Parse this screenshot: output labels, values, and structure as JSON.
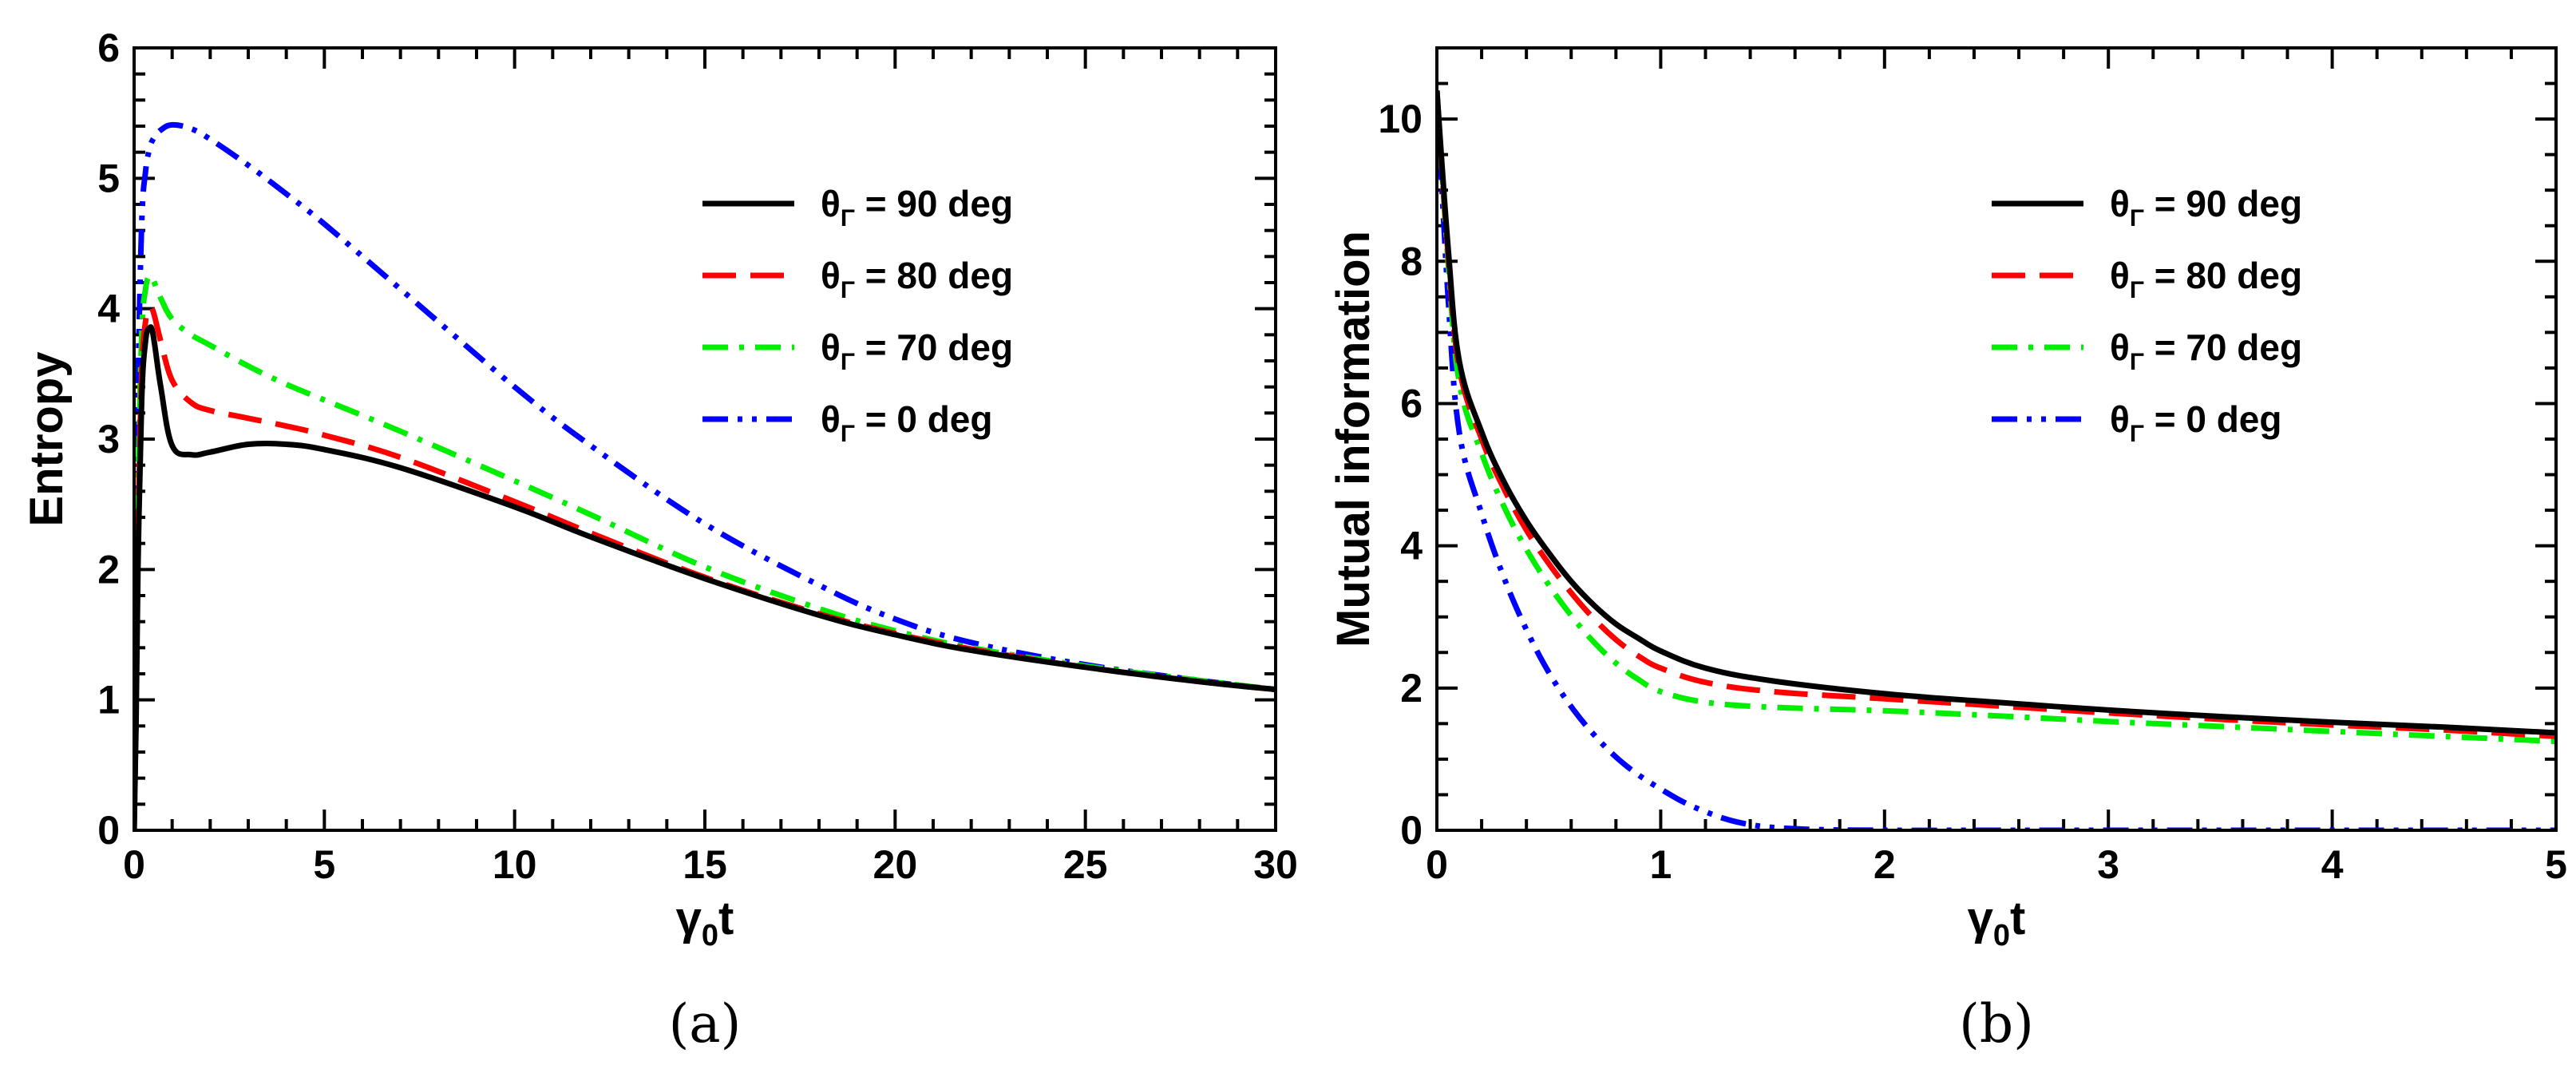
{
  "chart_data": [
    {
      "type": "line",
      "panel_label": "(a)",
      "xlabel_main": "γ",
      "xlabel_sub": "0",
      "xlabel_tail": "t",
      "ylabel": "Entropy",
      "xlim": [
        0,
        30
      ],
      "ylim": [
        0,
        6
      ],
      "xticks": [
        0,
        5,
        10,
        15,
        20,
        25,
        30
      ],
      "yticks": [
        0,
        1,
        2,
        3,
        4,
        5,
        6
      ],
      "legend_position": "top-right",
      "series": [
        {
          "name": "θΓ = 90 deg",
          "legend_main": "θ",
          "legend_sub": "Γ",
          "legend_rest": " = 90 deg",
          "color": "#000000",
          "dash": "solid",
          "x": [
            0,
            0.05,
            0.1,
            0.2,
            0.3,
            0.4,
            0.5,
            0.7,
            1.0,
            1.5,
            2,
            3,
            4,
            5,
            7,
            10,
            12,
            15,
            18,
            20,
            22,
            25,
            28,
            30
          ],
          "y": [
            0,
            0.8,
            2.0,
            3.3,
            3.75,
            3.85,
            3.8,
            3.4,
            2.95,
            2.88,
            2.9,
            2.96,
            2.96,
            2.92,
            2.78,
            2.48,
            2.25,
            1.93,
            1.65,
            1.5,
            1.38,
            1.25,
            1.14,
            1.08
          ]
        },
        {
          "name": "θΓ = 80 deg",
          "legend_main": "θ",
          "legend_sub": "Γ",
          "legend_rest": " = 80 deg",
          "color": "#ff0000",
          "dash": "dashed",
          "x": [
            0,
            0.05,
            0.1,
            0.2,
            0.3,
            0.4,
            0.5,
            0.7,
            1.0,
            1.5,
            2,
            3,
            4,
            5,
            7,
            10,
            12,
            15,
            18,
            20,
            22,
            25,
            28,
            30
          ],
          "y": [
            0,
            0.9,
            2.2,
            3.5,
            3.9,
            4.0,
            3.98,
            3.75,
            3.45,
            3.28,
            3.22,
            3.16,
            3.1,
            3.03,
            2.86,
            2.52,
            2.28,
            1.94,
            1.66,
            1.51,
            1.39,
            1.25,
            1.14,
            1.08
          ]
        },
        {
          "name": "θΓ = 70 deg",
          "legend_main": "θ",
          "legend_sub": "Γ",
          "legend_rest": " = 70 deg",
          "color": "#00ee00",
          "dash": "dashdot",
          "x": [
            0,
            0.05,
            0.1,
            0.2,
            0.3,
            0.4,
            0.5,
            0.7,
            1.0,
            1.5,
            2,
            3,
            4,
            5,
            7,
            10,
            12,
            15,
            18,
            20,
            22,
            25,
            28,
            30
          ],
          "y": [
            0,
            1.0,
            2.5,
            3.8,
            4.15,
            4.25,
            4.22,
            4.08,
            3.92,
            3.8,
            3.72,
            3.56,
            3.42,
            3.3,
            3.06,
            2.68,
            2.42,
            2.02,
            1.7,
            1.53,
            1.4,
            1.26,
            1.15,
            1.08
          ]
        },
        {
          "name": "θΓ = 0 deg",
          "legend_main": "θ",
          "legend_sub": "Γ",
          "legend_rest": " = 0 deg",
          "color": "#0000ff",
          "dash": "dashdotdot",
          "x": [
            0,
            0.05,
            0.1,
            0.2,
            0.3,
            0.4,
            0.5,
            0.7,
            1.0,
            1.5,
            2,
            3,
            4,
            5,
            7,
            10,
            12,
            15,
            18,
            20,
            22,
            25,
            28,
            30
          ],
          "y": [
            0,
            1.5,
            3.3,
            4.65,
            5.05,
            5.22,
            5.3,
            5.37,
            5.41,
            5.38,
            5.3,
            5.1,
            4.88,
            4.65,
            4.15,
            3.4,
            2.95,
            2.35,
            1.88,
            1.62,
            1.44,
            1.27,
            1.15,
            1.08
          ]
        }
      ]
    },
    {
      "type": "line",
      "panel_label": "(b)",
      "xlabel_main": "γ",
      "xlabel_sub": "0",
      "xlabel_tail": "t",
      "ylabel": "Mutual information",
      "xlim": [
        0,
        5
      ],
      "ylim": [
        0,
        11
      ],
      "xticks": [
        0,
        1,
        2,
        3,
        4,
        5
      ],
      "yticks": [
        0,
        2,
        4,
        6,
        8,
        10
      ],
      "legend_position": "top-right",
      "series": [
        {
          "name": "θΓ = 90 deg",
          "legend_main": "θ",
          "legend_sub": "Γ",
          "legend_rest": " = 90 deg",
          "color": "#000000",
          "dash": "solid",
          "x": [
            0,
            0.05,
            0.1,
            0.2,
            0.3,
            0.4,
            0.5,
            0.6,
            0.7,
            0.8,
            0.9,
            1.0,
            1.2,
            1.5,
            2,
            2.5,
            3,
            3.5,
            4,
            4.5,
            5
          ],
          "y": [
            10.4,
            8.2,
            6.6,
            5.6,
            4.9,
            4.35,
            3.9,
            3.5,
            3.17,
            2.9,
            2.7,
            2.52,
            2.28,
            2.1,
            1.92,
            1.8,
            1.69,
            1.6,
            1.52,
            1.45,
            1.37
          ]
        },
        {
          "name": "θΓ = 80 deg",
          "legend_main": "θ",
          "legend_sub": "Γ",
          "legend_rest": " = 80 deg",
          "color": "#ff0000",
          "dash": "dashed",
          "x": [
            0,
            0.05,
            0.1,
            0.2,
            0.3,
            0.4,
            0.5,
            0.6,
            0.7,
            0.8,
            0.9,
            1.0,
            1.2,
            1.5,
            2,
            2.5,
            3,
            3.5,
            4,
            4.5,
            5
          ],
          "y": [
            10.4,
            8.1,
            6.5,
            5.5,
            4.8,
            4.22,
            3.75,
            3.34,
            2.98,
            2.68,
            2.45,
            2.28,
            2.08,
            1.95,
            1.85,
            1.75,
            1.65,
            1.56,
            1.48,
            1.41,
            1.32
          ]
        },
        {
          "name": "θΓ = 70 deg",
          "legend_main": "θ",
          "legend_sub": "Γ",
          "legend_rest": " = 70 deg",
          "color": "#00ee00",
          "dash": "dashdot",
          "x": [
            0,
            0.05,
            0.1,
            0.2,
            0.3,
            0.4,
            0.5,
            0.6,
            0.7,
            0.8,
            0.9,
            1.0,
            1.2,
            1.5,
            2,
            2.5,
            3,
            3.5,
            4,
            4.5,
            5
          ],
          "y": [
            10.4,
            8.0,
            6.3,
            5.3,
            4.55,
            3.95,
            3.45,
            3.02,
            2.65,
            2.35,
            2.12,
            1.95,
            1.8,
            1.73,
            1.68,
            1.61,
            1.53,
            1.46,
            1.39,
            1.32,
            1.25
          ]
        },
        {
          "name": "θΓ = 0 deg",
          "legend_main": "θ",
          "legend_sub": "Γ",
          "legend_rest": " = 0 deg",
          "color": "#0000ff",
          "dash": "dashdotdot",
          "x": [
            0,
            0.05,
            0.1,
            0.2,
            0.3,
            0.4,
            0.5,
            0.6,
            0.7,
            0.8,
            0.9,
            1.0,
            1.1,
            1.2,
            1.3,
            1.4,
            1.5,
            1.7,
            2,
            2.5,
            3,
            4,
            5
          ],
          "y": [
            10.4,
            7.5,
            5.6,
            4.45,
            3.55,
            2.82,
            2.22,
            1.74,
            1.35,
            1.03,
            0.78,
            0.58,
            0.4,
            0.26,
            0.15,
            0.08,
            0.04,
            0.01,
            0,
            0,
            0,
            0,
            0
          ]
        }
      ]
    }
  ]
}
